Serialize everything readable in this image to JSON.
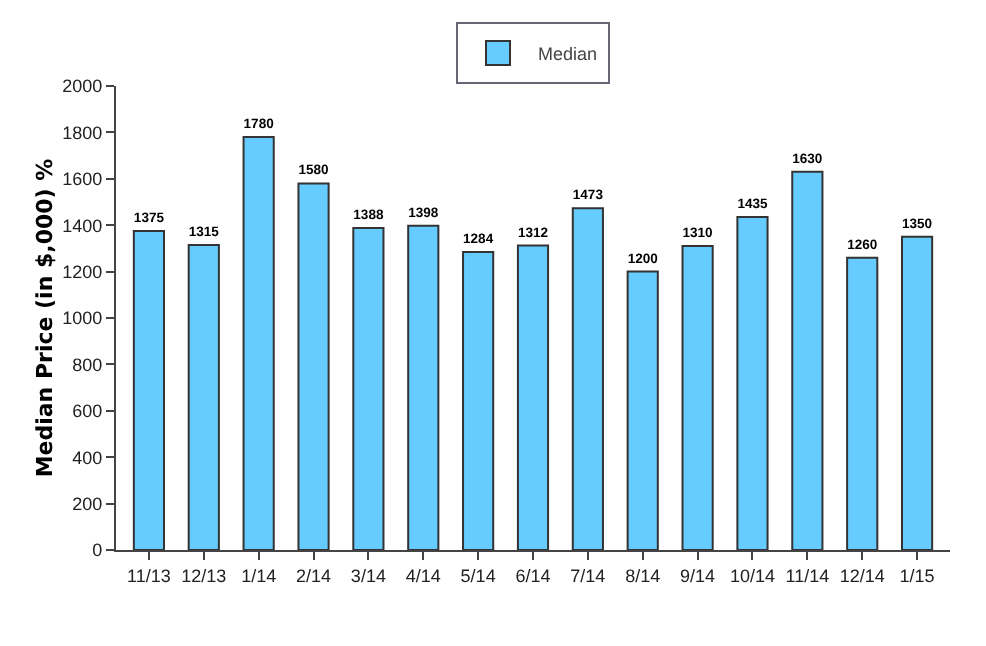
{
  "chart_data": {
    "type": "bar",
    "ylabel": "Median Price (in $,000) %",
    "categories": [
      "11/13",
      "12/13",
      "1/14",
      "2/14",
      "3/14",
      "4/14",
      "5/14",
      "6/14",
      "7/14",
      "8/14",
      "9/14",
      "10/14",
      "11/14",
      "12/14",
      "1/15"
    ],
    "series": [
      {
        "name": "Median",
        "color": "#66ccff",
        "values": [
          1375,
          1315,
          1780,
          1580,
          1388,
          1398,
          1284,
          1312,
          1473,
          1200,
          1310,
          1435,
          1630,
          1260,
          1350
        ]
      }
    ],
    "ylim": [
      0,
      2000
    ],
    "yticks": [
      0,
      200,
      400,
      600,
      800,
      1000,
      1200,
      1400,
      1600,
      1800,
      2000
    ],
    "grid": false,
    "legend": "top",
    "data_labels": true
  }
}
